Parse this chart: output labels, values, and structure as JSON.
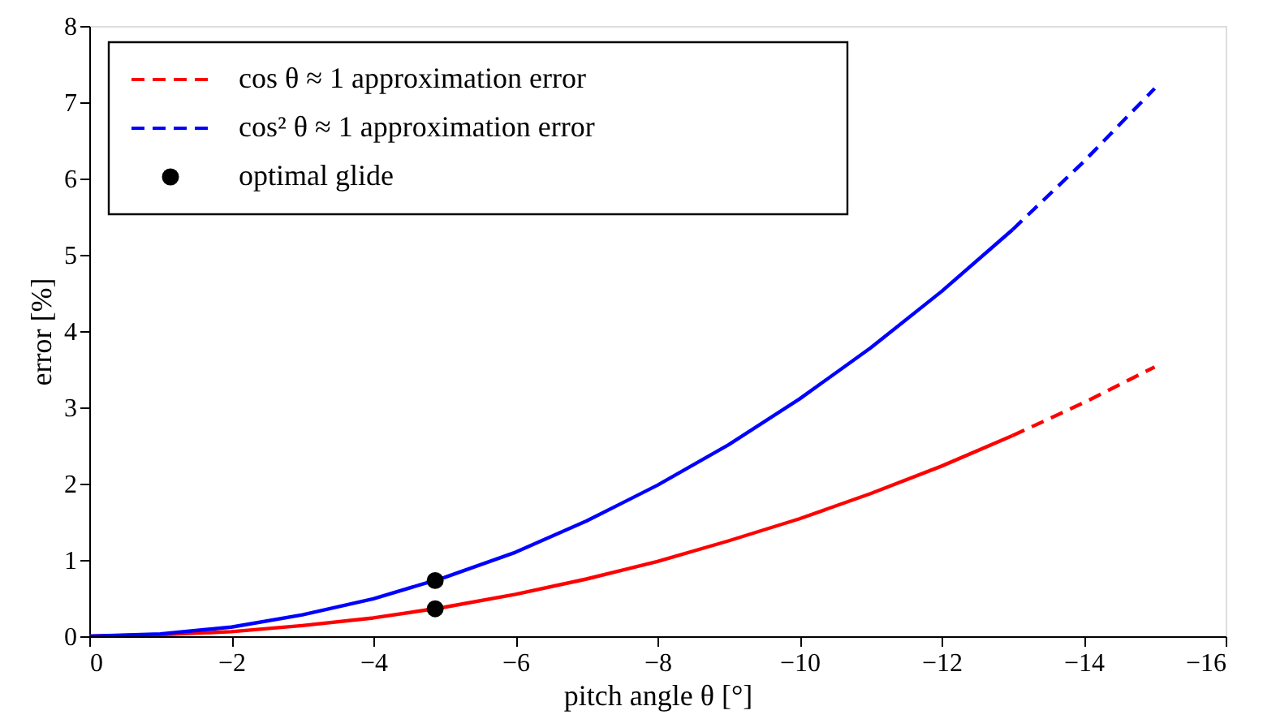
{
  "chart_data": {
    "type": "line",
    "xlabel": "pitch angle θ [°]",
    "ylabel": "error [%]",
    "xlim": [
      0,
      -16
    ],
    "xticks": [
      0,
      -2,
      -4,
      -6,
      -8,
      -10,
      -12,
      -14,
      -16
    ],
    "ylim": [
      0,
      8
    ],
    "yticks": [
      0,
      1,
      2,
      3,
      4,
      5,
      6,
      7,
      8
    ],
    "grid": false,
    "legend": "top left",
    "series": [
      {
        "color": "#ff0000",
        "line_style": "solid",
        "x": [
          0,
          -1,
          -2,
          -3,
          -4,
          -5,
          -6,
          -7,
          -8,
          -9,
          -10,
          -11,
          -12,
          -13
        ],
        "values": [
          0,
          0.02,
          0.06,
          0.14,
          0.24,
          0.38,
          0.55,
          0.75,
          0.98,
          1.25,
          1.54,
          1.87,
          2.23,
          2.63
        ]
      },
      {
        "color": "#0000ff",
        "line_style": "solid",
        "x": [
          0,
          -1,
          -2,
          -3,
          -4,
          -5,
          -6,
          -7,
          -8,
          -9,
          -10,
          -11,
          -12,
          -13
        ],
        "values": [
          0,
          0.03,
          0.12,
          0.28,
          0.49,
          0.77,
          1.1,
          1.51,
          1.98,
          2.51,
          3.11,
          3.78,
          4.52,
          5.33
        ]
      },
      {
        "name": "cos θ ≈ 1 approximation error",
        "color": "#ff0000",
        "line_style": "dashed",
        "x": [
          -13,
          -14,
          -15
        ],
        "values": [
          2.63,
          3.06,
          3.53
        ]
      },
      {
        "name": "cos² θ ≈ 1 approximation error",
        "color": "#0000ff",
        "line_style": "dashed",
        "x": [
          -13,
          -14,
          -15
        ],
        "values": [
          5.33,
          6.22,
          7.18
        ]
      },
      {
        "name": "optimal glide",
        "type": "scatter",
        "marker": "circle",
        "color": "#000000",
        "x": [
          -4.87,
          -4.87
        ],
        "values": [
          0.36,
          0.73
        ]
      }
    ]
  }
}
